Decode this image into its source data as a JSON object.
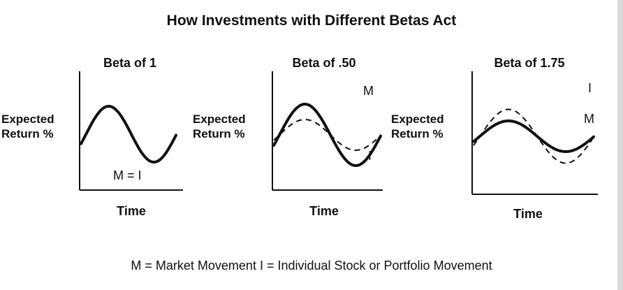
{
  "chart_data": {
    "type": "line",
    "title": "How Investments with Different Betas Act",
    "footnote": "M = Market Movement   I = Individual Stock or Portfolio Movement",
    "colors": {
      "ink": "#111111",
      "frame_edge": "#d9d9d9"
    },
    "panels": [
      {
        "title": "Beta of 1",
        "ylabel_line1": "Expected",
        "ylabel_line2": "Return %",
        "xlabel": "Time",
        "series_label": "M = I",
        "beta": 1,
        "series": [
          {
            "label": "M",
            "style": "solid"
          }
        ]
      },
      {
        "title": "Beta of .50",
        "ylabel_line1": "Expected",
        "ylabel_line2": "Return %",
        "xlabel": "Time",
        "beta": 0.5,
        "series": [
          {
            "label": "M",
            "style": "solid"
          },
          {
            "label": "I",
            "style": "dashed"
          }
        ]
      },
      {
        "title": "Beta of 1.75",
        "ylabel_line1": "Expected",
        "ylabel_line2": "Return %",
        "xlabel": "Time",
        "beta": 1.75,
        "series": [
          {
            "label": "M",
            "style": "solid"
          },
          {
            "label": "I",
            "style": "dashed"
          }
        ]
      }
    ]
  }
}
